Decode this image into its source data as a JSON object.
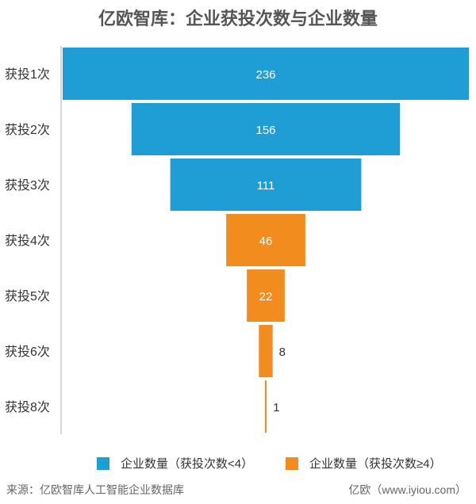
{
  "title": "亿欧智库：企业获投次数与企业数量",
  "source": "来源：亿欧智库人工智能企业数据库",
  "brand": "亿欧（www.iyiou.com）",
  "colors": {
    "blue": "#1f9dd5",
    "orange": "#f28c1e"
  },
  "chart_data": {
    "type": "bar",
    "subtype": "funnel",
    "orientation": "horizontal",
    "categories": [
      "获投1次",
      "获投2次",
      "获投3次",
      "获投4次",
      "获投5次",
      "获投6次",
      "获投8次"
    ],
    "values": [
      236,
      156,
      111,
      46,
      22,
      8,
      1
    ],
    "series": [
      {
        "name": "企业数量（获投次数<4）",
        "color": "#1f9dd5",
        "categories": [
          "获投1次",
          "获投2次",
          "获投3次"
        ]
      },
      {
        "name": "企业数量（获投次数≥4）",
        "color": "#f28c1e",
        "categories": [
          "获投4次",
          "获投5次",
          "获投6次",
          "获投8次"
        ]
      }
    ],
    "data_labels": true,
    "legend": "bottom"
  }
}
